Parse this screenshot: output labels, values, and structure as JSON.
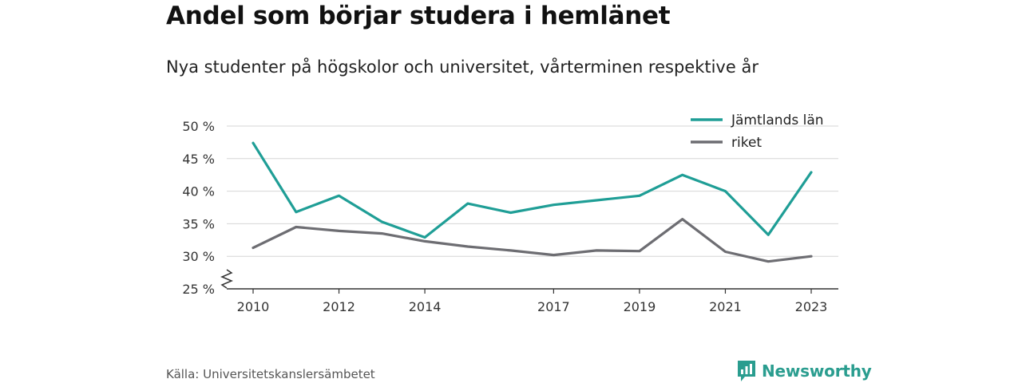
{
  "title": "Andel som börjar studera i hemlänet",
  "subtitle": "Nya studenter på högskolor och universitet, vårterminen respektive år",
  "source": "Källa: Universitetskanslersämbetet",
  "brand": {
    "name": "Newsworthy",
    "icon": "newsworthy-logo-icon",
    "color": "#2a9d8f"
  },
  "chart_data": {
    "type": "line",
    "title": "Andel som börjar studera i hemlänet",
    "subtitle": "Nya studenter på högskolor och universitet, vårterminen respektive år",
    "x": [
      2010,
      2011,
      2012,
      2013,
      2014,
      2015,
      2016,
      2017,
      2018,
      2019,
      2020,
      2021,
      2022,
      2023
    ],
    "x_tick_values": [
      2010,
      2012,
      2014,
      2017,
      2019,
      2021,
      2023
    ],
    "x_tick_labels": [
      "2010",
      "2012",
      "2014",
      "2017",
      "2019",
      "2021",
      "2023"
    ],
    "y_tick_values": [
      25,
      30,
      35,
      40,
      45,
      50
    ],
    "y_tick_labels": [
      "25 %",
      "30 %",
      "35 %",
      "40 %",
      "45 %",
      "50 %"
    ],
    "ylim": [
      25,
      50
    ],
    "y_axis_break": true,
    "grid": true,
    "legend_position": "top-right",
    "series": [
      {
        "name": "Jämtlands län",
        "color": "#1f9e96",
        "values": [
          47.4,
          36.8,
          39.3,
          35.3,
          32.9,
          38.1,
          36.7,
          37.9,
          38.6,
          39.3,
          42.5,
          40.0,
          33.3,
          42.9
        ]
      },
      {
        "name": "riket",
        "color": "#6d6d72",
        "values": [
          31.3,
          34.5,
          33.9,
          33.5,
          32.3,
          31.5,
          30.9,
          30.2,
          30.9,
          30.8,
          35.7,
          30.7,
          29.2,
          30.0
        ]
      }
    ]
  }
}
